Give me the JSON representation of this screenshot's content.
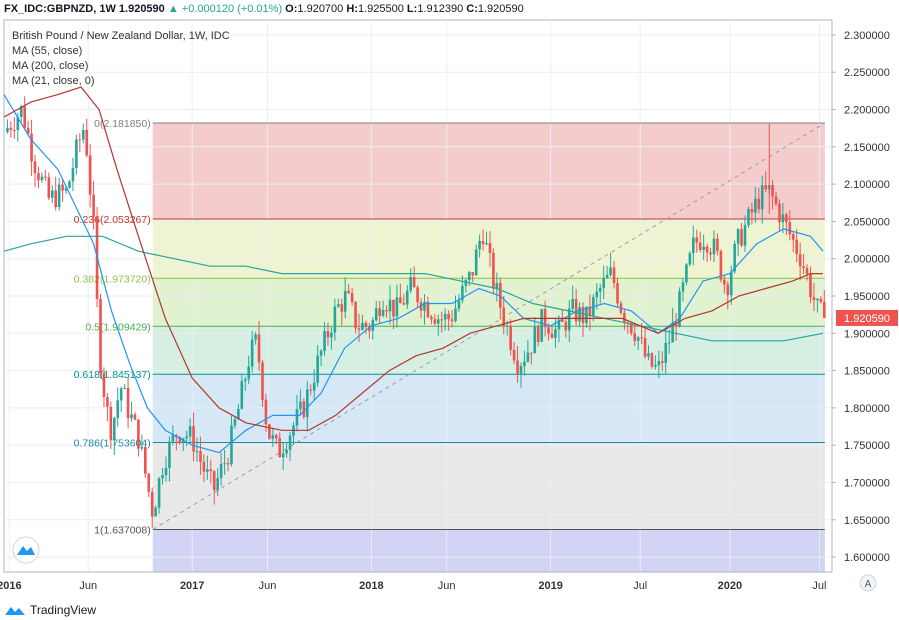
{
  "header": {
    "symbol": "FX_IDC:GBPNZD, 1W",
    "last": "1.920590",
    "change": "▲ +0.000120 (+0.01%)",
    "open_label": "O:",
    "open": "1.920700",
    "high_label": "H:",
    "high": "1.925500",
    "low_label": "L:",
    "low": "1.912390",
    "close_label": "C:",
    "close": "1.920590"
  },
  "legend": {
    "title": "British Pound / New Zealand Dollar, 1W, IDC",
    "ma1": "MA (55, close)",
    "ma2": "MA (200, close)",
    "ma3": "MA (21, close, 0)"
  },
  "footer": {
    "brand": "TradingView"
  },
  "scale_button": "A",
  "colors": {
    "up": "#26a69a",
    "down": "#ef5350",
    "ma55": "#2196f3",
    "ma200": "#26a69a",
    "ma21": "#b2362d"
  },
  "chart_data": {
    "type": "candlestick",
    "ylim": [
      1.58,
      2.32
    ],
    "x_range": [
      2015.95,
      2020.57
    ],
    "yticks": [
      "2.300000",
      "2.250000",
      "2.200000",
      "2.150000",
      "2.100000",
      "2.050000",
      "2.000000",
      "1.950000",
      "1.900000",
      "1.850000",
      "1.800000",
      "1.750000",
      "1.700000",
      "1.650000",
      "1.600000"
    ],
    "xticks": [
      {
        "t": 2015.98,
        "label": "2016"
      },
      {
        "t": 2016.42,
        "label": "Jun"
      },
      {
        "t": 2017.0,
        "label": "2017"
      },
      {
        "t": 2017.42,
        "label": "Jun"
      },
      {
        "t": 2018.0,
        "label": "2018"
      },
      {
        "t": 2018.42,
        "label": "Jun"
      },
      {
        "t": 2019.0,
        "label": "2019"
      },
      {
        "t": 2019.5,
        "label": "Jul"
      },
      {
        "t": 2020.0,
        "label": "2020"
      },
      {
        "t": 2020.5,
        "label": "Jul"
      }
    ],
    "last_price_label": "1.920590",
    "last_price": 1.92059,
    "fibonacci": {
      "t_start": 2016.78,
      "t_end": 2020.53,
      "levels": [
        {
          "ratio": "0",
          "price": 2.18185,
          "label": "0(2.181850)",
          "line": "#808080",
          "fill": "#f4cccc"
        },
        {
          "ratio": "0.236",
          "price": 2.053267,
          "label": "0.236(2.053267)",
          "line": "#c0392b",
          "fill": "#eef3d1"
        },
        {
          "ratio": "0.382",
          "price": 1.97372,
          "label": "0.382(1.973720)",
          "line": "#8bc34a",
          "fill": "#e0f2d0"
        },
        {
          "ratio": "0.5",
          "price": 1.909429,
          "label": "0.5(1.909429)",
          "line": "#4caf50",
          "fill": "#d6efe3"
        },
        {
          "ratio": "0.618",
          "price": 1.845137,
          "label": "0.618(1.845137)",
          "line": "#009688",
          "fill": "#d6e8f5"
        },
        {
          "ratio": "0.786",
          "price": 1.753604,
          "label": "0.786(1.753604)",
          "line": "#1e88a8",
          "fill": "#e8e8e8"
        },
        {
          "ratio": "1",
          "price": 1.637008,
          "label": "1(1.637008)",
          "line": "#555555",
          "fill": "#d1d4f5"
        }
      ],
      "extension_floor": 1.58
    },
    "trend_line": {
      "from": [
        2016.78,
        1.637
      ],
      "to": [
        2020.53,
        2.1818
      ]
    },
    "price_path": [
      [
        2015.95,
        2.17
      ],
      [
        2016.05,
        2.2
      ],
      [
        2016.12,
        2.13
      ],
      [
        2016.2,
        2.08
      ],
      [
        2016.3,
        2.09
      ],
      [
        2016.36,
        2.15
      ],
      [
        2016.4,
        2.18
      ],
      [
        2016.45,
        2.04
      ],
      [
        2016.48,
        1.88
      ],
      [
        2016.52,
        1.8
      ],
      [
        2016.55,
        1.77
      ],
      [
        2016.6,
        1.83
      ],
      [
        2016.64,
        1.8
      ],
      [
        2016.7,
        1.76
      ],
      [
        2016.74,
        1.71
      ],
      [
        2016.78,
        1.66
      ],
      [
        2016.84,
        1.73
      ],
      [
        2016.92,
        1.77
      ],
      [
        2017.0,
        1.76
      ],
      [
        2017.06,
        1.72
      ],
      [
        2017.12,
        1.69
      ],
      [
        2017.2,
        1.74
      ],
      [
        2017.26,
        1.8
      ],
      [
        2017.32,
        1.87
      ],
      [
        2017.36,
        1.89
      ],
      [
        2017.42,
        1.77
      ],
      [
        2017.48,
        1.74
      ],
      [
        2017.55,
        1.77
      ],
      [
        2017.62,
        1.8
      ],
      [
        2017.7,
        1.86
      ],
      [
        2017.8,
        1.93
      ],
      [
        2017.86,
        1.95
      ],
      [
        2017.92,
        1.91
      ],
      [
        2018.0,
        1.91
      ],
      [
        2018.06,
        1.95
      ],
      [
        2018.14,
        1.93
      ],
      [
        2018.22,
        1.96
      ],
      [
        2018.3,
        1.94
      ],
      [
        2018.38,
        1.92
      ],
      [
        2018.44,
        1.92
      ],
      [
        2018.5,
        1.95
      ],
      [
        2018.56,
        1.98
      ],
      [
        2018.62,
        2.04
      ],
      [
        2018.68,
        1.97
      ],
      [
        2018.74,
        1.92
      ],
      [
        2018.82,
        1.86
      ],
      [
        2018.88,
        1.88
      ],
      [
        2018.96,
        1.92
      ],
      [
        2019.04,
        1.9
      ],
      [
        2019.12,
        1.93
      ],
      [
        2019.2,
        1.92
      ],
      [
        2019.28,
        1.96
      ],
      [
        2019.34,
        1.98
      ],
      [
        2019.4,
        1.93
      ],
      [
        2019.48,
        1.9
      ],
      [
        2019.54,
        1.86
      ],
      [
        2019.6,
        1.85
      ],
      [
        2019.66,
        1.89
      ],
      [
        2019.72,
        1.94
      ],
      [
        2019.76,
        1.98
      ],
      [
        2019.8,
        2.02
      ],
      [
        2019.86,
        2.03
      ],
      [
        2019.92,
        2.01
      ],
      [
        2019.98,
        1.96
      ],
      [
        2020.04,
        2.02
      ],
      [
        2020.1,
        2.05
      ],
      [
        2020.16,
        2.08
      ],
      [
        2020.22,
        2.09
      ],
      [
        2020.28,
        2.06
      ],
      [
        2020.34,
        2.03
      ],
      [
        2020.4,
        2.0
      ],
      [
        2020.45,
        1.96
      ],
      [
        2020.49,
        1.93
      ],
      [
        2020.53,
        1.92
      ]
    ],
    "ma55": [
      [
        2015.95,
        2.22
      ],
      [
        2016.1,
        2.16
      ],
      [
        2016.25,
        2.12
      ],
      [
        2016.35,
        2.07
      ],
      [
        2016.45,
        2.02
      ],
      [
        2016.55,
        1.93
      ],
      [
        2016.65,
        1.86
      ],
      [
        2016.75,
        1.8
      ],
      [
        2016.85,
        1.77
      ],
      [
        2017.0,
        1.75
      ],
      [
        2017.15,
        1.74
      ],
      [
        2017.3,
        1.77
      ],
      [
        2017.45,
        1.79
      ],
      [
        2017.6,
        1.79
      ],
      [
        2017.72,
        1.82
      ],
      [
        2017.85,
        1.88
      ],
      [
        2018.0,
        1.91
      ],
      [
        2018.15,
        1.92
      ],
      [
        2018.3,
        1.94
      ],
      [
        2018.45,
        1.94
      ],
      [
        2018.6,
        1.96
      ],
      [
        2018.72,
        1.95
      ],
      [
        2018.85,
        1.92
      ],
      [
        2019.0,
        1.91
      ],
      [
        2019.15,
        1.93
      ],
      [
        2019.3,
        1.94
      ],
      [
        2019.45,
        1.93
      ],
      [
        2019.6,
        1.9
      ],
      [
        2019.72,
        1.92
      ],
      [
        2019.85,
        1.97
      ],
      [
        2020.0,
        1.98
      ],
      [
        2020.15,
        2.02
      ],
      [
        2020.3,
        2.04
      ],
      [
        2020.45,
        2.03
      ],
      [
        2020.52,
        2.01
      ]
    ],
    "ma200": [
      [
        2015.95,
        2.01
      ],
      [
        2016.1,
        2.02
      ],
      [
        2016.3,
        2.03
      ],
      [
        2016.5,
        2.03
      ],
      [
        2016.7,
        2.01
      ],
      [
        2016.9,
        2.0
      ],
      [
        2017.1,
        1.99
      ],
      [
        2017.3,
        1.99
      ],
      [
        2017.5,
        1.98
      ],
      [
        2017.7,
        1.98
      ],
      [
        2017.9,
        1.98
      ],
      [
        2018.1,
        1.98
      ],
      [
        2018.3,
        1.98
      ],
      [
        2018.5,
        1.97
      ],
      [
        2018.7,
        1.96
      ],
      [
        2018.9,
        1.94
      ],
      [
        2019.1,
        1.93
      ],
      [
        2019.3,
        1.92
      ],
      [
        2019.5,
        1.91
      ],
      [
        2019.7,
        1.9
      ],
      [
        2019.9,
        1.89
      ],
      [
        2020.1,
        1.89
      ],
      [
        2020.3,
        1.89
      ],
      [
        2020.52,
        1.9
      ]
    ],
    "ma21": [
      [
        2015.95,
        2.19
      ],
      [
        2016.1,
        2.21
      ],
      [
        2016.25,
        2.22
      ],
      [
        2016.38,
        2.23
      ],
      [
        2016.48,
        2.2
      ],
      [
        2016.58,
        2.12
      ],
      [
        2016.7,
        2.03
      ],
      [
        2016.85,
        1.92
      ],
      [
        2017.0,
        1.84
      ],
      [
        2017.15,
        1.8
      ],
      [
        2017.3,
        1.78
      ],
      [
        2017.5,
        1.77
      ],
      [
        2017.65,
        1.77
      ],
      [
        2017.8,
        1.79
      ],
      [
        2017.95,
        1.82
      ],
      [
        2018.1,
        1.85
      ],
      [
        2018.25,
        1.87
      ],
      [
        2018.4,
        1.88
      ],
      [
        2018.55,
        1.9
      ],
      [
        2018.7,
        1.91
      ],
      [
        2018.85,
        1.92
      ],
      [
        2019.0,
        1.92
      ],
      [
        2019.2,
        1.92
      ],
      [
        2019.4,
        1.92
      ],
      [
        2019.6,
        1.9
      ],
      [
        2019.75,
        1.92
      ],
      [
        2019.9,
        1.93
      ],
      [
        2020.05,
        1.95
      ],
      [
        2020.2,
        1.96
      ],
      [
        2020.35,
        1.97
      ],
      [
        2020.45,
        1.98
      ],
      [
        2020.52,
        1.98
      ]
    ]
  }
}
